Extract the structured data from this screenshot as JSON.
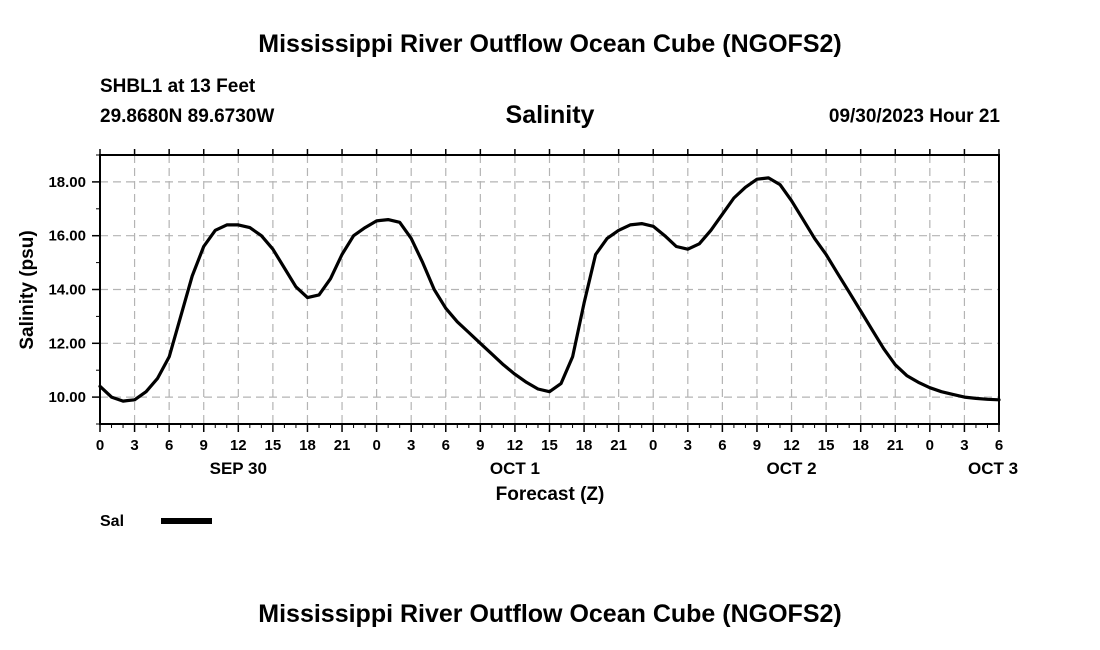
{
  "header": {
    "title": "Mississippi River Outflow Ocean Cube (NGOFS2)",
    "station": "SHBL1 at 13 Feet",
    "coordinates": "29.8680N  89.6730W",
    "variable": "Salinity",
    "timestamp": "09/30/2023 Hour 21"
  },
  "footer": {
    "title": "Mississippi River Outflow Ocean Cube (NGOFS2)"
  },
  "chart_data": {
    "type": "line",
    "xlabel": "Forecast (Z)",
    "ylabel": "Salinity (psu)",
    "xlim": [
      0,
      78
    ],
    "ylim": [
      9,
      19
    ],
    "y_ticks": [
      "10.00",
      "12.00",
      "14.00",
      "16.00",
      "18.00"
    ],
    "y_tick_values": [
      10,
      12,
      14,
      16,
      18
    ],
    "x_tick_labels": [
      "0",
      "3",
      "6",
      "9",
      "12",
      "15",
      "18",
      "21",
      "0",
      "3",
      "6",
      "9",
      "12",
      "15",
      "18",
      "21",
      "0",
      "3",
      "6",
      "9",
      "12",
      "15",
      "18",
      "21",
      "0",
      "3",
      "6"
    ],
    "day_labels": [
      {
        "label": "SEP 30",
        "hour": 12
      },
      {
        "label": "OCT 1",
        "hour": 36
      },
      {
        "label": "OCT 2",
        "hour": 60
      },
      {
        "label": "OCT 3",
        "hour": 78
      }
    ],
    "grid": true,
    "legend_position": "bottom-left",
    "series": [
      {
        "name": "Sal",
        "color": "#000000",
        "x": [
          0,
          1,
          2,
          3,
          4,
          5,
          6,
          7,
          8,
          9,
          10,
          11,
          12,
          13,
          14,
          15,
          16,
          17,
          18,
          19,
          20,
          21,
          22,
          23,
          24,
          25,
          26,
          27,
          28,
          29,
          30,
          31,
          32,
          33,
          34,
          35,
          36,
          37,
          38,
          39,
          40,
          41,
          42,
          43,
          44,
          45,
          46,
          47,
          48,
          49,
          50,
          51,
          52,
          53,
          54,
          55,
          56,
          57,
          58,
          59,
          60,
          61,
          62,
          63,
          64,
          65,
          66,
          67,
          68,
          69,
          70,
          71,
          72,
          73,
          74,
          75,
          76,
          77,
          78
        ],
        "values": [
          10.4,
          10.0,
          9.85,
          9.9,
          10.2,
          10.7,
          11.5,
          13.0,
          14.5,
          15.6,
          16.2,
          16.4,
          16.4,
          16.3,
          16.0,
          15.5,
          14.8,
          14.1,
          13.7,
          13.8,
          14.4,
          15.3,
          16.0,
          16.3,
          16.55,
          16.6,
          16.5,
          15.9,
          15.0,
          14.0,
          13.3,
          12.8,
          12.4,
          12.0,
          11.6,
          11.2,
          10.85,
          10.55,
          10.3,
          10.2,
          10.5,
          11.5,
          13.5,
          15.3,
          15.9,
          16.2,
          16.4,
          16.45,
          16.35,
          16.0,
          15.6,
          15.5,
          15.7,
          16.2,
          16.8,
          17.4,
          17.8,
          18.1,
          18.15,
          17.9,
          17.3,
          16.6,
          15.9,
          15.3,
          14.6,
          13.9,
          13.2,
          12.5,
          11.8,
          11.2,
          10.8,
          10.55,
          10.35,
          10.2,
          10.1,
          10.0,
          9.95,
          9.92,
          9.9
        ]
      }
    ]
  }
}
